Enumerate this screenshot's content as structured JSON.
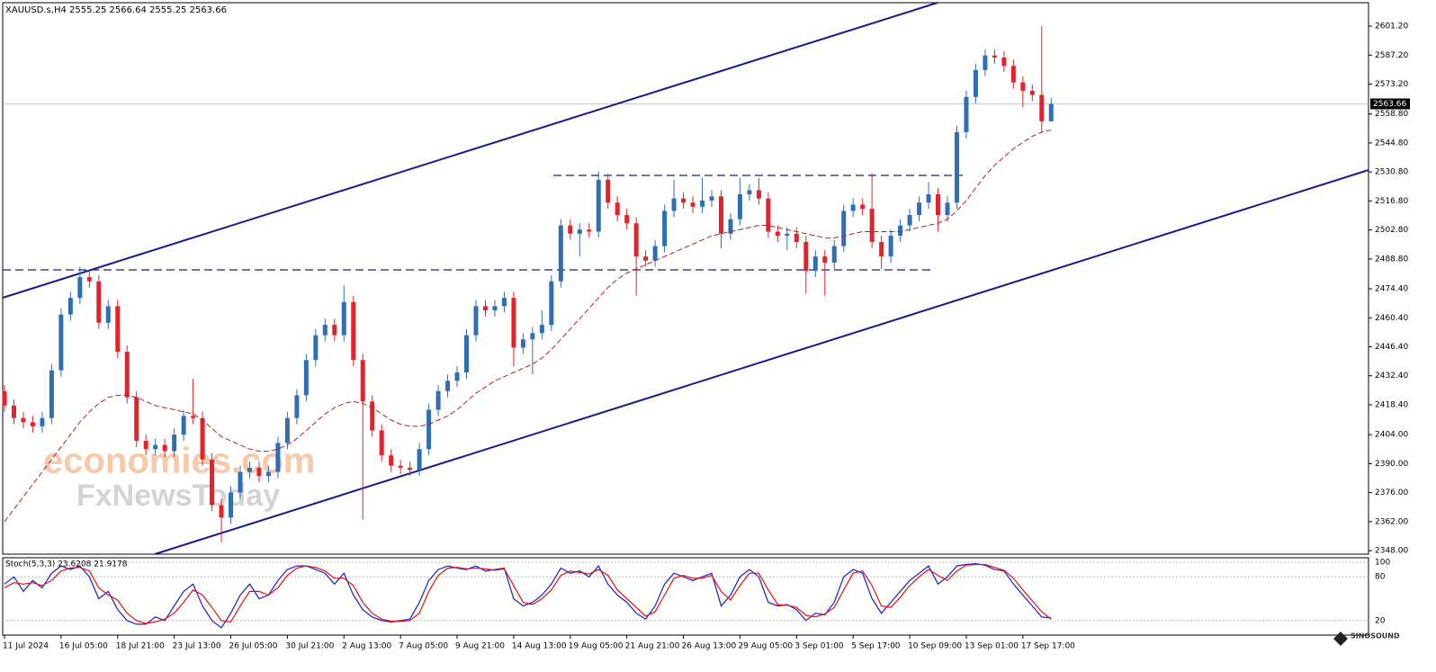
{
  "chart_data": [
    {
      "type": "candlestick",
      "title": "XAUUSD.s,H4  2555.25 2566.64 2555.25 2563.66",
      "categories": [
        "11 Jul 2024",
        null,
        null,
        null,
        null,
        null,
        "16 Jul 05:00",
        null,
        null,
        null,
        null,
        null,
        "18 Jul 21:00",
        null,
        null,
        null,
        null,
        null,
        "23 Jul 13:00",
        null,
        null,
        null,
        null,
        null,
        "26 Jul 05:00",
        null,
        null,
        null,
        null,
        null,
        "30 Jul 21:00",
        null,
        null,
        null,
        null,
        null,
        "2 Aug 13:00",
        null,
        null,
        null,
        null,
        null,
        "7 Aug 05:00",
        null,
        null,
        null,
        null,
        null,
        "9 Aug 21:00",
        null,
        null,
        null,
        null,
        null,
        "14 Aug 13:00",
        null,
        null,
        null,
        null,
        null,
        "19 Aug 05:00",
        null,
        null,
        null,
        null,
        null,
        "21 Aug 21:00",
        null,
        null,
        null,
        null,
        null,
        "26 Aug 13:00",
        null,
        null,
        null,
        null,
        null,
        "29 Aug 05:00",
        null,
        null,
        null,
        null,
        null,
        "3 Sep 01:00",
        null,
        null,
        null,
        null,
        null,
        "5 Sep 17:00",
        null,
        null,
        null,
        null,
        null,
        "10 Sep 09:00",
        null,
        null,
        null,
        null,
        null,
        "13 Sep 01:00",
        null,
        null,
        null,
        null,
        null,
        "17 Sep 17:00",
        null,
        null,
        null
      ],
      "open": [
        2425,
        2418,
        2412,
        2410,
        2408,
        2412,
        2435,
        2462,
        2470,
        2480,
        2478,
        2458,
        2466,
        2444,
        2422,
        2401,
        2397,
        2399,
        2396,
        2404,
        2413,
        2412,
        2392,
        2370,
        2364,
        2376,
        2386,
        2388,
        2384,
        2386,
        2400,
        2412,
        2423,
        2440,
        2452,
        2457,
        2452,
        2468,
        2440,
        2420,
        2406,
        2394,
        2389,
        2388,
        2387,
        2397,
        2416,
        2425,
        2430,
        2434,
        2452,
        2466,
        2464,
        2466,
        2470,
        2446,
        2450,
        2453,
        2457,
        2478,
        2505,
        2501,
        2503,
        2502,
        2527,
        2516,
        2510,
        2506,
        2490,
        2488,
        2495,
        2512,
        2518,
        2516,
        2514,
        2517,
        2519,
        2501,
        2508,
        2520,
        2522,
        2518,
        2502,
        2500,
        2501,
        2497,
        2483,
        2490,
        2487,
        2495,
        2512,
        2515,
        2513,
        2497,
        2490,
        2500,
        2505,
        2510,
        2516,
        2520,
        2510,
        2516,
        2550,
        2567,
        2580,
        2587,
        2586,
        2582,
        2574,
        2570,
        2568,
        2555.25
      ],
      "high": [
        2428,
        2421,
        2415,
        2413,
        2415,
        2438,
        2465,
        2473,
        2485,
        2483,
        2481,
        2469,
        2469,
        2447,
        2425,
        2404,
        2402,
        2402,
        2407,
        2416,
        2431,
        2415,
        2395,
        2373,
        2379,
        2389,
        2391,
        2391,
        2389,
        2403,
        2415,
        2426,
        2443,
        2455,
        2460,
        2460,
        2476,
        2471,
        2443,
        2423,
        2409,
        2397,
        2392,
        2391,
        2400,
        2419,
        2428,
        2433,
        2437,
        2455,
        2469,
        2469,
        2469,
        2473,
        2473,
        2453,
        2456,
        2464,
        2481,
        2508,
        2508,
        2506,
        2506,
        2531,
        2530,
        2519,
        2513,
        2509,
        2493,
        2498,
        2515,
        2527,
        2521,
        2519,
        2528,
        2522,
        2522,
        2511,
        2528,
        2525,
        2528,
        2521,
        2505,
        2504,
        2504,
        2500,
        2493,
        2493,
        2498,
        2515,
        2518,
        2518,
        2530,
        2500,
        2503,
        2508,
        2513,
        2519,
        2526,
        2523,
        2519,
        2553,
        2570,
        2583,
        2590,
        2590,
        2589,
        2585,
        2577,
        2573,
        2601.2,
        2566.64
      ],
      "low": [
        2415,
        2409,
        2407,
        2405,
        2405,
        2409,
        2432,
        2459,
        2467,
        2475,
        2455,
        2455,
        2441,
        2419,
        2398,
        2394,
        2394,
        2393,
        2393,
        2401,
        2409,
        2389,
        2367,
        2352,
        2361,
        2373,
        2383,
        2381,
        2381,
        2383,
        2397,
        2409,
        2420,
        2437,
        2449,
        2449,
        2449,
        2437,
        2363,
        2403,
        2391,
        2386,
        2385,
        2384,
        2384,
        2394,
        2413,
        2422,
        2427,
        2431,
        2449,
        2461,
        2461,
        2463,
        2437,
        2443,
        2433,
        2450,
        2454,
        2475,
        2498,
        2490,
        2499,
        2499,
        2513,
        2507,
        2503,
        2471,
        2485,
        2485,
        2492,
        2509,
        2513,
        2511,
        2511,
        2514,
        2494,
        2498,
        2505,
        2517,
        2515,
        2499,
        2497,
        2493,
        2494,
        2472,
        2480,
        2471,
        2484,
        2492,
        2509,
        2510,
        2494,
        2484,
        2487,
        2497,
        2502,
        2507,
        2513,
        2502,
        2507,
        2513,
        2547,
        2564,
        2577,
        2583,
        2579,
        2571,
        2562,
        2565,
        2550,
        2555.25
      ],
      "close": [
        2418,
        2412,
        2410,
        2408,
        2412,
        2435,
        2462,
        2470,
        2480,
        2478,
        2458,
        2466,
        2444,
        2422,
        2401,
        2397,
        2399,
        2396,
        2404,
        2413,
        2412,
        2392,
        2370,
        2364,
        2376,
        2386,
        2388,
        2384,
        2386,
        2400,
        2412,
        2423,
        2440,
        2452,
        2457,
        2452,
        2468,
        2440,
        2420,
        2406,
        2394,
        2389,
        2388,
        2387,
        2397,
        2416,
        2425,
        2430,
        2434,
        2452,
        2466,
        2464,
        2466,
        2470,
        2446,
        2450,
        2453,
        2457,
        2478,
        2505,
        2501,
        2503,
        2502,
        2527,
        2516,
        2510,
        2506,
        2490,
        2488,
        2495,
        2512,
        2518,
        2516,
        2514,
        2517,
        2519,
        2501,
        2508,
        2520,
        2522,
        2518,
        2502,
        2500,
        2501,
        2497,
        2483,
        2490,
        2487,
        2495,
        2512,
        2515,
        2513,
        2497,
        2490,
        2500,
        2505,
        2510,
        2516,
        2520,
        2510,
        2516,
        2550,
        2567,
        2580,
        2587,
        2586,
        2582,
        2574,
        2570,
        2568,
        2555.25,
        2563.66
      ],
      "up_color": "#2f6db5",
      "down_color": "#e8202a",
      "moving_average": {
        "color": "#b22222",
        "values": [
          2362,
          2368,
          2374,
          2380,
          2386,
          2392,
          2398,
          2404,
          2410,
          2415,
          2419,
          2422,
          2423,
          2423,
          2422,
          2420,
          2418,
          2417,
          2416,
          2415,
          2414,
          2411,
          2407,
          2403,
          2401,
          2399,
          2397,
          2396,
          2396,
          2397,
          2399,
          2402,
          2406,
          2410,
          2414,
          2417,
          2419,
          2420,
          2419,
          2417,
          2414,
          2411,
          2409,
          2408,
          2408,
          2409,
          2411,
          2413,
          2416,
          2420,
          2424,
          2427,
          2430,
          2432,
          2434,
          2436,
          2438,
          2441,
          2445,
          2450,
          2455,
          2460,
          2465,
          2470,
          2475,
          2479,
          2482,
          2484,
          2486,
          2488,
          2490,
          2492,
          2494,
          2496,
          2498,
          2500,
          2501,
          2502,
          2503,
          2504,
          2505,
          2505,
          2504,
          2503,
          2502,
          2501,
          2500,
          2499,
          2499,
          2500,
          2501,
          2502,
          2502,
          2502,
          2502,
          2502,
          2503,
          2504,
          2505,
          2506,
          2508,
          2512,
          2517,
          2523,
          2529,
          2534,
          2538,
          2542,
          2545,
          2548,
          2550,
          2551
        ]
      },
      "ylim": [
        2346.3,
        2612.5
      ],
      "yticks": [
        {
          "value": 2348,
          "label": "2348.00"
        },
        {
          "value": 2362,
          "label": "2362.00"
        },
        {
          "value": 2376,
          "label": "2376.00"
        },
        {
          "value": 2390,
          "label": "2390.00"
        },
        {
          "value": 2404,
          "label": "2404.00"
        },
        {
          "value": 2418.4,
          "label": "2418.40"
        },
        {
          "value": 2432.4,
          "label": "2432.40"
        },
        {
          "value": 2446.4,
          "label": "2446.40"
        },
        {
          "value": 2460.4,
          "label": "2460.40"
        },
        {
          "value": 2474.4,
          "label": "2474.40"
        },
        {
          "value": 2488.8,
          "label": "2488.80"
        },
        {
          "value": 2502.8,
          "label": "2502.80"
        },
        {
          "value": 2516.8,
          "label": "2516.80"
        },
        {
          "value": 2530.8,
          "label": "2530.80"
        },
        {
          "value": 2544.8,
          "label": "2544.80"
        },
        {
          "value": 2558.8,
          "label": "2558.80"
        },
        {
          "value": 2573.2,
          "label": "2573.20"
        },
        {
          "value": 2587.2,
          "label": "2587.20"
        },
        {
          "value": 2601.2,
          "label": "2601.20"
        }
      ],
      "last_price": 2563.66,
      "watermark": [
        "economies.com",
        "FxNewsToday"
      ],
      "logo": "SINOSOUND"
    },
    {
      "type": "line",
      "title": "Stoch(5,3,3) 23.6208 21.9178",
      "series": [
        {
          "color": "#1c1cc8",
          "values": [
            70,
            80,
            60,
            75,
            65,
            85,
            95,
            90,
            95,
            80,
            50,
            60,
            35,
            20,
            15,
            15,
            25,
            20,
            40,
            60,
            70,
            40,
            20,
            10,
            30,
            55,
            70,
            50,
            55,
            75,
            90,
            95,
            95,
            90,
            85,
            70,
            85,
            55,
            35,
            25,
            20,
            18,
            20,
            22,
            45,
            75,
            90,
            95,
            92,
            90,
            95,
            88,
            90,
            92,
            50,
            40,
            45,
            55,
            70,
            92,
            85,
            88,
            80,
            95,
            70,
            55,
            45,
            30,
            22,
            40,
            70,
            85,
            80,
            75,
            80,
            85,
            40,
            55,
            80,
            90,
            80,
            45,
            40,
            42,
            35,
            20,
            30,
            28,
            45,
            80,
            90,
            85,
            50,
            30,
            45,
            60,
            75,
            85,
            95,
            70,
            80,
            95,
            97,
            98,
            96,
            90,
            88,
            70,
            55,
            40,
            25,
            23.6208
          ]
        },
        {
          "color": "#e01010",
          "values": [
            65,
            72,
            70,
            72,
            68,
            75,
            88,
            92,
            93,
            88,
            65,
            55,
            48,
            30,
            20,
            16,
            18,
            22,
            30,
            45,
            62,
            55,
            38,
            20,
            18,
            40,
            60,
            60,
            55,
            65,
            82,
            92,
            95,
            93,
            88,
            78,
            78,
            68,
            45,
            30,
            22,
            19,
            19,
            20,
            30,
            60,
            82,
            92,
            93,
            91,
            92,
            91,
            89,
            91,
            68,
            45,
            42,
            50,
            62,
            82,
            88,
            86,
            84,
            90,
            82,
            62,
            50,
            38,
            26,
            32,
            55,
            78,
            82,
            78,
            78,
            82,
            60,
            48,
            68,
            85,
            85,
            62,
            42,
            41,
            38,
            27,
            25,
            29,
            38,
            62,
            85,
            88,
            68,
            40,
            38,
            52,
            68,
            80,
            90,
            82,
            75,
            88,
            96,
            97,
            97,
            93,
            89,
            78,
            62,
            47,
            32,
            21.9178
          ]
        }
      ],
      "ylim": [
        0,
        106.2
      ],
      "yticks": [
        20,
        80,
        100
      ],
      "grid_dashed": true
    }
  ]
}
